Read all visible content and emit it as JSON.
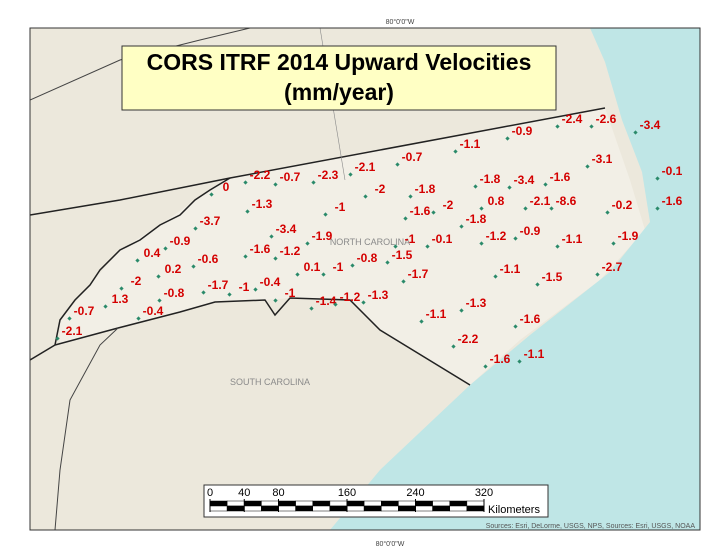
{
  "title": [
    "CORS ITRF 2014 Upward Velocities",
    "(mm/year)"
  ],
  "meridian_top": "80°0'0\"W",
  "meridian_bottom": "80°0'0\"W",
  "state_labels": [
    "NORTH CAROLINA",
    "SOUTH CAROLINA"
  ],
  "velocities": [
    -2.4,
    -2.6,
    -3.4,
    -0.9,
    -1.1,
    -0.7,
    -3.1,
    -2.1,
    -2.2,
    -0.7,
    -2.3,
    -0.1,
    -1.6,
    0,
    -2,
    -1.8,
    -1.8,
    -3.4,
    0.8,
    -2.1,
    -8.6,
    -0.2,
    -1.6,
    -1.3,
    -1,
    -2,
    -1.6,
    -1.8,
    -3.7,
    -3.4,
    -1.9,
    -1.2,
    -0.9,
    -1.1,
    -1.9,
    -0.9,
    -1,
    -0.1,
    -1.6,
    -1.2,
    0.4,
    -0.6,
    -0.8,
    -1.5,
    0.2,
    0.1,
    -1,
    -1.7,
    -1.1,
    -2.7,
    -1.5,
    -2,
    -1.7,
    -1,
    -0.4,
    -0.8,
    -1,
    -1.4,
    -1.2,
    -1.3,
    1.3,
    -0.4,
    -0.7,
    -1.3,
    -1.1,
    -1.6,
    -2.1,
    -2.2,
    -1.6,
    -1.1
  ],
  "scale": {
    "ticks": [
      0,
      40,
      80,
      160,
      240,
      320
    ],
    "unit": "Kilometers"
  },
  "sources": "Sources: Esri, DeLorme, USGS, NPS, Sources: Esri, USGS, NOAA"
}
